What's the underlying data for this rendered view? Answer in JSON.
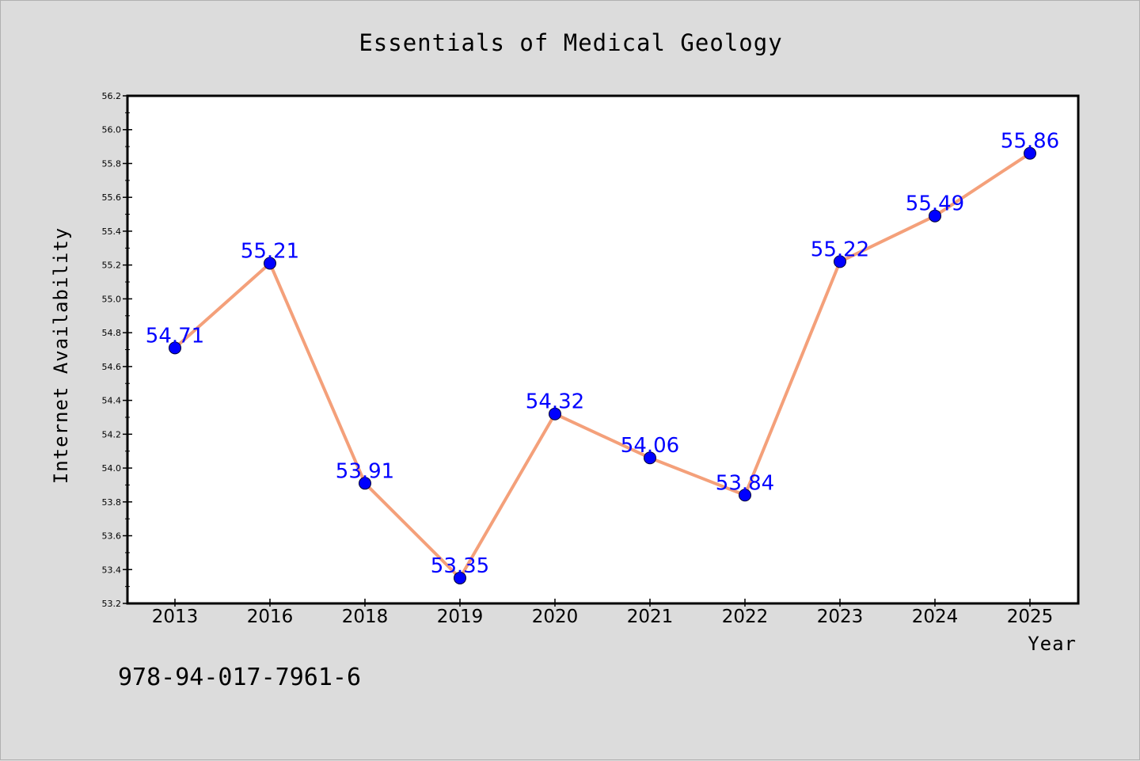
{
  "chart_data": {
    "type": "line",
    "title": "Essentials of Medical Geology",
    "xlabel": "Year",
    "ylabel": "Internet Availability",
    "categories": [
      "2013",
      "2016",
      "2018",
      "2019",
      "2020",
      "2021",
      "2022",
      "2023",
      "2024",
      "2025"
    ],
    "values": [
      54.71,
      55.21,
      53.91,
      53.35,
      54.32,
      54.06,
      53.84,
      55.22,
      55.49,
      55.86
    ],
    "data_labels": [
      "54.71",
      "55.21",
      "53.91",
      "53.35",
      "54.32",
      "54.06",
      "53.84",
      "55.22",
      "55.49",
      "55.86"
    ],
    "ylim": [
      53.2,
      56.2
    ],
    "yticks": [
      "53.2",
      "53.4",
      "53.6",
      "53.8",
      "54.0",
      "54.2",
      "54.4",
      "54.6",
      "54.8",
      "55.0",
      "55.2",
      "55.4",
      "55.6",
      "55.8",
      "56.0",
      "56.2"
    ],
    "grid": false,
    "legend": "none",
    "line_color": "#f4a07a",
    "marker_color": "#0000ff",
    "label_color": "#0000ff"
  },
  "footer": {
    "isbn": "978-94-017-7961-6"
  }
}
